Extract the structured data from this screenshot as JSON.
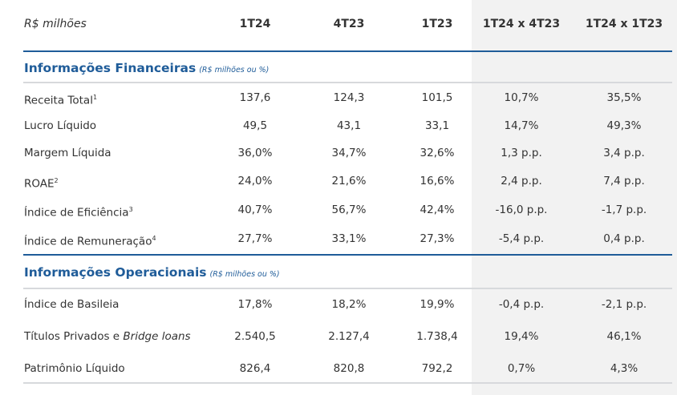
{
  "header": {
    "label": "R$ milhões",
    "cols": [
      "1T24",
      "4T23",
      "1T23",
      "1T24 x 4T23",
      "1T24 x 1T23"
    ]
  },
  "sections": [
    {
      "title": "Informações Financeiras",
      "unit": "(R$ milhões ou %)",
      "rows": [
        {
          "label": "Receita Total",
          "sup": "1",
          "values": [
            "137,6",
            "124,3",
            "101,5",
            "10,7%",
            "35,5%"
          ]
        },
        {
          "label": "Lucro Líquido",
          "sup": "",
          "values": [
            "49,5",
            "43,1",
            "33,1",
            "14,7%",
            "49,3%"
          ]
        },
        {
          "label": "Margem Líquida",
          "sup": "",
          "values": [
            "36,0%",
            "34,7%",
            "32,6%",
            "1,3 p.p.",
            "3,4 p.p."
          ]
        },
        {
          "label": "ROAE",
          "sup": "2",
          "values": [
            "24,0%",
            "21,6%",
            "16,6%",
            "2,4 p.p.",
            "7,4 p.p."
          ]
        },
        {
          "label": "Índice de Eficiência",
          "sup": "3",
          "values": [
            "40,7%",
            "56,7%",
            "42,4%",
            "-16,0 p.p.",
            "-1,7 p.p."
          ]
        },
        {
          "label": "Índice de Remuneração",
          "sup": "4",
          "values": [
            "27,7%",
            "33,1%",
            "27,3%",
            "-5,4 p.p.",
            "0,4 p.p."
          ]
        }
      ]
    },
    {
      "title": "Informações Operacionais",
      "unit": "(R$ milhões ou %)",
      "rows": [
        {
          "label": "Índice de Basileia",
          "sup": "",
          "values": [
            "17,8%",
            "18,2%",
            "19,9%",
            "-0,4 p.p.",
            "-2,1 p.p."
          ]
        },
        {
          "label": "Títulos Privados e ",
          "label_italic": "Bridge loans",
          "sup": "",
          "values": [
            "2.540,5",
            "2.127,4",
            "1.738,4",
            "19,4%",
            "46,1%"
          ]
        },
        {
          "label": "Patrimônio Líquido",
          "sup": "",
          "values": [
            "826,4",
            "820,8",
            "792,2",
            "0,7%",
            "4,3%"
          ]
        }
      ]
    }
  ],
  "colors": {
    "accent": "#1f5c99",
    "shade": "#f2f2f2"
  }
}
